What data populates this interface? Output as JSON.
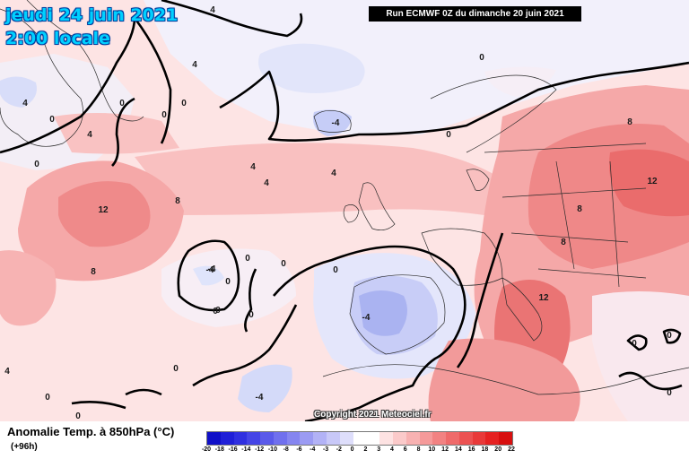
{
  "header": {
    "date": "jeudi 24 juin 2021",
    "time": "2:00 locale",
    "run": "Run ECMWF 0Z du dimanche 20 juin 2021"
  },
  "footer": {
    "parameter": "Anomalie Temp. à 850hPa (°C)",
    "lead": "(+96h)",
    "copyright": "Copyright 2021 Meteociel.fr"
  },
  "colors": {
    "land": "#f7c8c8",
    "ocean": "#fde4e4",
    "warm_light": "#f9b9b9",
    "warm_mid": "#f39a9a",
    "warm_strong": "#ec7575",
    "cold_light": "#dfe4fb",
    "cold_mid": "#c6cdf7",
    "cold_strong": "#a9b2f1",
    "isoline": "#000000"
  },
  "scale": {
    "ticks": [
      "-20",
      "-18",
      "-16",
      "-14",
      "-12",
      "-10",
      "-8",
      "-6",
      "-4",
      "-3",
      "-2",
      "0",
      "2",
      "3",
      "4",
      "6",
      "8",
      "10",
      "12",
      "14",
      "16",
      "18",
      "20",
      "22"
    ],
    "colors": [
      "#1010c8",
      "#2020d8",
      "#3030e0",
      "#4545e6",
      "#5a5aea",
      "#7070ee",
      "#8585f0",
      "#9b9bf3",
      "#b2b2f6",
      "#c8c8f8",
      "#dedefb",
      "#ffffff",
      "#ffffff",
      "#fde2e2",
      "#fbcaca",
      "#f8b2b2",
      "#f59a9a",
      "#f28282",
      "#ef6a6a",
      "#ec5252",
      "#e93a3a",
      "#e62222",
      "#d81010"
    ]
  },
  "contour_labels": [
    {
      "text": "4"
    },
    {
      "text": "4"
    },
    {
      "text": "0"
    },
    {
      "text": "0"
    },
    {
      "text": "4"
    },
    {
      "text": "0"
    },
    {
      "text": "0"
    },
    {
      "text": "0"
    },
    {
      "text": "4"
    },
    {
      "text": "0"
    },
    {
      "text": "-4"
    },
    {
      "text": "4"
    },
    {
      "text": "4"
    },
    {
      "text": "8"
    },
    {
      "text": "12"
    },
    {
      "text": "8"
    },
    {
      "text": "0"
    },
    {
      "text": "-4"
    },
    {
      "text": "0"
    },
    {
      "text": "0"
    },
    {
      "text": "0"
    },
    {
      "text": "0"
    },
    {
      "text": "0"
    },
    {
      "text": "-4"
    },
    {
      "text": "-4"
    },
    {
      "text": "4"
    },
    {
      "text": "0"
    },
    {
      "text": "8"
    },
    {
      "text": "12"
    },
    {
      "text": "8"
    },
    {
      "text": "8"
    },
    {
      "text": "12"
    },
    {
      "text": "0"
    },
    {
      "text": "0"
    },
    {
      "text": "0"
    },
    {
      "text": "-4"
    },
    {
      "text": "0"
    },
    {
      "text": "0"
    },
    {
      "text": "4"
    },
    {
      "text": "0"
    },
    {
      "text": "0"
    }
  ]
}
